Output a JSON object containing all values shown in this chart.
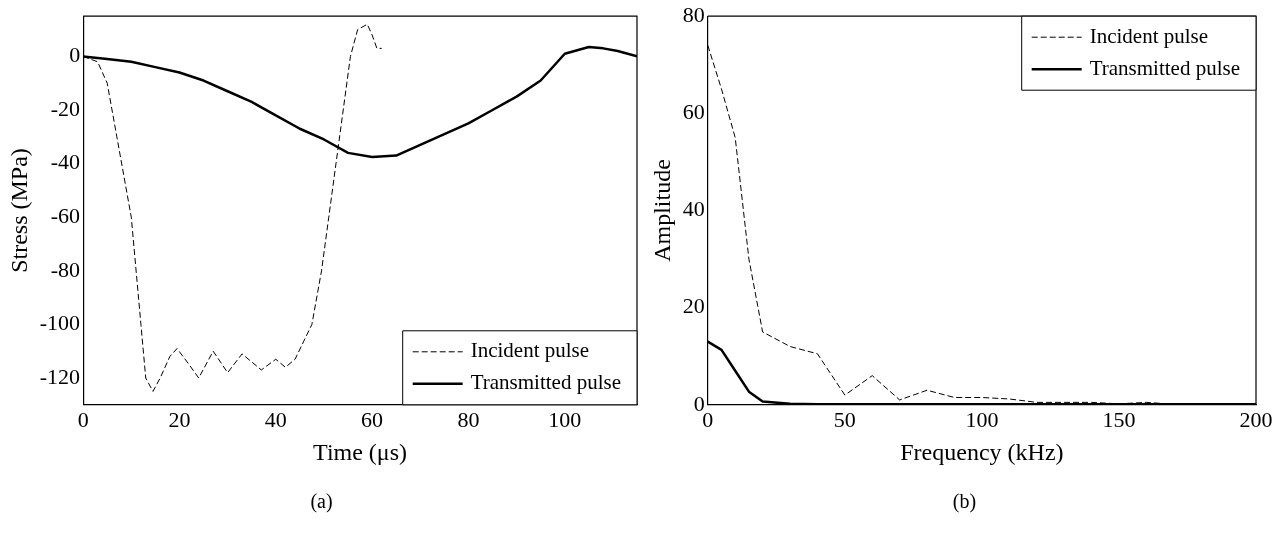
{
  "chart_data": [
    {
      "type": "line",
      "xlabel": "Time (μs)",
      "ylabel": "Stress (MPa)",
      "xlim": [
        0,
        115
      ],
      "ylim": [
        -130,
        15
      ],
      "xticks": [
        0,
        20,
        40,
        60,
        80,
        100
      ],
      "yticks": [
        -120,
        -100,
        -80,
        -60,
        -40,
        -20,
        0
      ],
      "grid": false,
      "legend": "bottom right",
      "marker": "none",
      "annotations": [
        "(a)"
      ],
      "series": [
        {
          "name": "Incident pulse",
          "color": "#000000",
          "line_style": "dashed",
          "x": [
            0,
            3,
            5,
            7,
            10,
            12,
            13,
            14.5,
            16,
            18,
            19.5,
            22,
            24,
            27,
            30,
            33,
            37,
            40,
            42,
            44,
            47.5,
            49.5,
            51,
            52.5,
            54,
            55.5,
            57,
            59,
            60,
            61,
            62
          ],
          "values": [
            0,
            -2,
            -10,
            -30,
            -60,
            -100,
            -120,
            -125,
            -120,
            -112,
            -109,
            -115,
            -120,
            -110,
            -118,
            -111,
            -117,
            -113,
            -116,
            -113,
            -100,
            -80,
            -60,
            -40,
            -20,
            0,
            10,
            12,
            8,
            3,
            3
          ]
        },
        {
          "name": "Transmitted pulse",
          "color": "#000000",
          "line_style": "solid",
          "x": [
            0,
            5,
            10,
            15,
            20,
            25,
            30,
            35,
            40,
            45,
            50,
            55,
            60,
            65,
            70,
            75,
            80,
            85,
            90,
            95,
            100,
            105,
            108,
            111,
            115
          ],
          "values": [
            0,
            -1,
            -2,
            -4,
            -6,
            -9,
            -13,
            -17,
            -22,
            -27,
            -31,
            -36,
            -37.5,
            -37,
            -33,
            -29,
            -25,
            -20,
            -15,
            -9,
            1,
            3.5,
            3,
            2,
            0
          ]
        }
      ]
    },
    {
      "type": "line",
      "xlabel": "Frequency (kHz)",
      "ylabel": "Amplitude",
      "xlim": [
        0,
        200
      ],
      "ylim": [
        0,
        80
      ],
      "xticks": [
        0,
        50,
        100,
        150,
        200
      ],
      "yticks": [
        0,
        20,
        40,
        60,
        80
      ],
      "grid": false,
      "legend": "top right",
      "marker": "none",
      "annotations": [
        "(b)"
      ],
      "series": [
        {
          "name": "Incident pulse",
          "color": "#000000",
          "line_style": "dashed",
          "x": [
            0,
            5,
            10,
            15,
            20,
            30,
            40,
            50,
            60,
            70,
            80,
            90,
            100,
            110,
            120,
            130,
            140,
            150,
            160,
            170,
            180,
            190,
            200
          ],
          "values": [
            74,
            65,
            55,
            30,
            15,
            12,
            10.5,
            2,
            6,
            1,
            3,
            1.5,
            1.5,
            1.2,
            0.5,
            0.5,
            0.5,
            0.2,
            0.5,
            0.1,
            0.2,
            0.1,
            0.1
          ]
        },
        {
          "name": "Transmitted pulse",
          "color": "#000000",
          "line_style": "solid",
          "x": [
            0,
            5,
            10,
            15,
            20,
            30,
            40,
            50,
            100,
            150,
            200
          ],
          "values": [
            13,
            11.3,
            7,
            2.7,
            0.7,
            0.2,
            0.1,
            0.1,
            0.1,
            0.1,
            0.1
          ]
        }
      ]
    }
  ]
}
